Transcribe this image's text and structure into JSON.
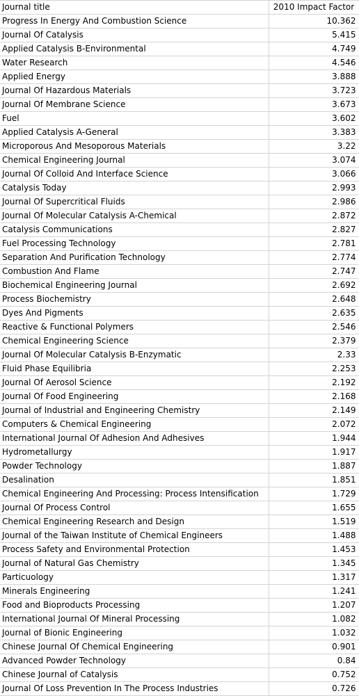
{
  "header": {
    "col1": "Journal title",
    "col2": "2010 Impact Factor"
  },
  "rows": [
    {
      "title": "Progress In Energy And Combustion Science",
      "factor": "10.362"
    },
    {
      "title": "Journal Of Catalysis",
      "factor": "5.415"
    },
    {
      "title": "Applied Catalysis B-Environmental",
      "factor": "4.749"
    },
    {
      "title": "Water Research",
      "factor": "4.546"
    },
    {
      "title": "Applied Energy",
      "factor": "3.888"
    },
    {
      "title": "Journal Of Hazardous Materials",
      "factor": "3.723"
    },
    {
      "title": "Journal Of Membrane Science",
      "factor": "3.673"
    },
    {
      "title": "Fuel",
      "factor": "3.602"
    },
    {
      "title": "Applied Catalysis A-General",
      "factor": "3.383"
    },
    {
      "title": "Microporous And Mesoporous Materials",
      "factor": "3.22"
    },
    {
      "title": "Chemical Engineering Journal",
      "factor": "3.074"
    },
    {
      "title": "Journal Of Colloid And Interface Science",
      "factor": "3.066"
    },
    {
      "title": "Catalysis Today",
      "factor": "2.993"
    },
    {
      "title": "Journal Of Supercritical Fluids",
      "factor": "2.986"
    },
    {
      "title": "Journal Of Molecular Catalysis A-Chemical",
      "factor": "2.872"
    },
    {
      "title": "Catalysis Communications",
      "factor": "2.827"
    },
    {
      "title": "Fuel Processing Technology",
      "factor": "2.781"
    },
    {
      "title": "Separation And Purification Technology",
      "factor": "2.774"
    },
    {
      "title": "Combustion And Flame",
      "factor": "2.747"
    },
    {
      "title": "Biochemical Engineering Journal",
      "factor": "2.692"
    },
    {
      "title": "Process Biochemistry",
      "factor": "2.648"
    },
    {
      "title": "Dyes And Pigments",
      "factor": "2.635"
    },
    {
      "title": "Reactive & Functional Polymers",
      "factor": "2.546"
    },
    {
      "title": "Chemical Engineering Science",
      "factor": "2.379"
    },
    {
      "title": "Journal Of Molecular Catalysis B-Enzymatic",
      "factor": "2.33"
    },
    {
      "title": "Fluid Phase Equilibria",
      "factor": "2.253"
    },
    {
      "title": "Journal Of Aerosol Science",
      "factor": "2.192"
    },
    {
      "title": "Journal Of Food Engineering",
      "factor": "2.168"
    },
    {
      "title": "Journal of Industrial and Engineering Chemistry",
      "factor": "2.149"
    },
    {
      "title": "Computers & Chemical Engineering",
      "factor": "2.072"
    },
    {
      "title": "International Journal Of Adhesion And Adhesives",
      "factor": "1.944"
    },
    {
      "title": "Hydrometallurgy",
      "factor": "1.917"
    },
    {
      "title": "Powder Technology",
      "factor": "1.887"
    },
    {
      "title": "Desalination",
      "factor": "1.851"
    },
    {
      "title": "Chemical Engineering And Processing: Process Intensification",
      "factor": "1.729"
    },
    {
      "title": "Journal Of Process Control",
      "factor": "1.655"
    },
    {
      "title": "Chemical Engineering Research and Design",
      "factor": "1.519"
    },
    {
      "title": "Journal of the Taiwan Institute of Chemical Engineers",
      "factor": "1.488"
    },
    {
      "title": "Process Safety and Environmental Protection",
      "factor": "1.453"
    },
    {
      "title": "Journal of Natural Gas Chemistry",
      "factor": "1.345"
    },
    {
      "title": "Particuology",
      "factor": "1.317"
    },
    {
      "title": "Minerals Engineering",
      "factor": "1.241"
    },
    {
      "title": "Food and Bioproducts Processing",
      "factor": "1.207"
    },
    {
      "title": "International Journal Of Mineral Processing",
      "factor": "1.082"
    },
    {
      "title": "Journal of Bionic Engineering",
      "factor": "1.032"
    },
    {
      "title": "Chinese Journal Of Chemical Engineering",
      "factor": "0.901"
    },
    {
      "title": "Advanced Powder Technology",
      "factor": "0.84"
    },
    {
      "title": "Chinese Journal of Catalysis",
      "factor": "0.752"
    },
    {
      "title": "Journal Of Loss Prevention In The Process Industries",
      "factor": "0.726"
    }
  ]
}
